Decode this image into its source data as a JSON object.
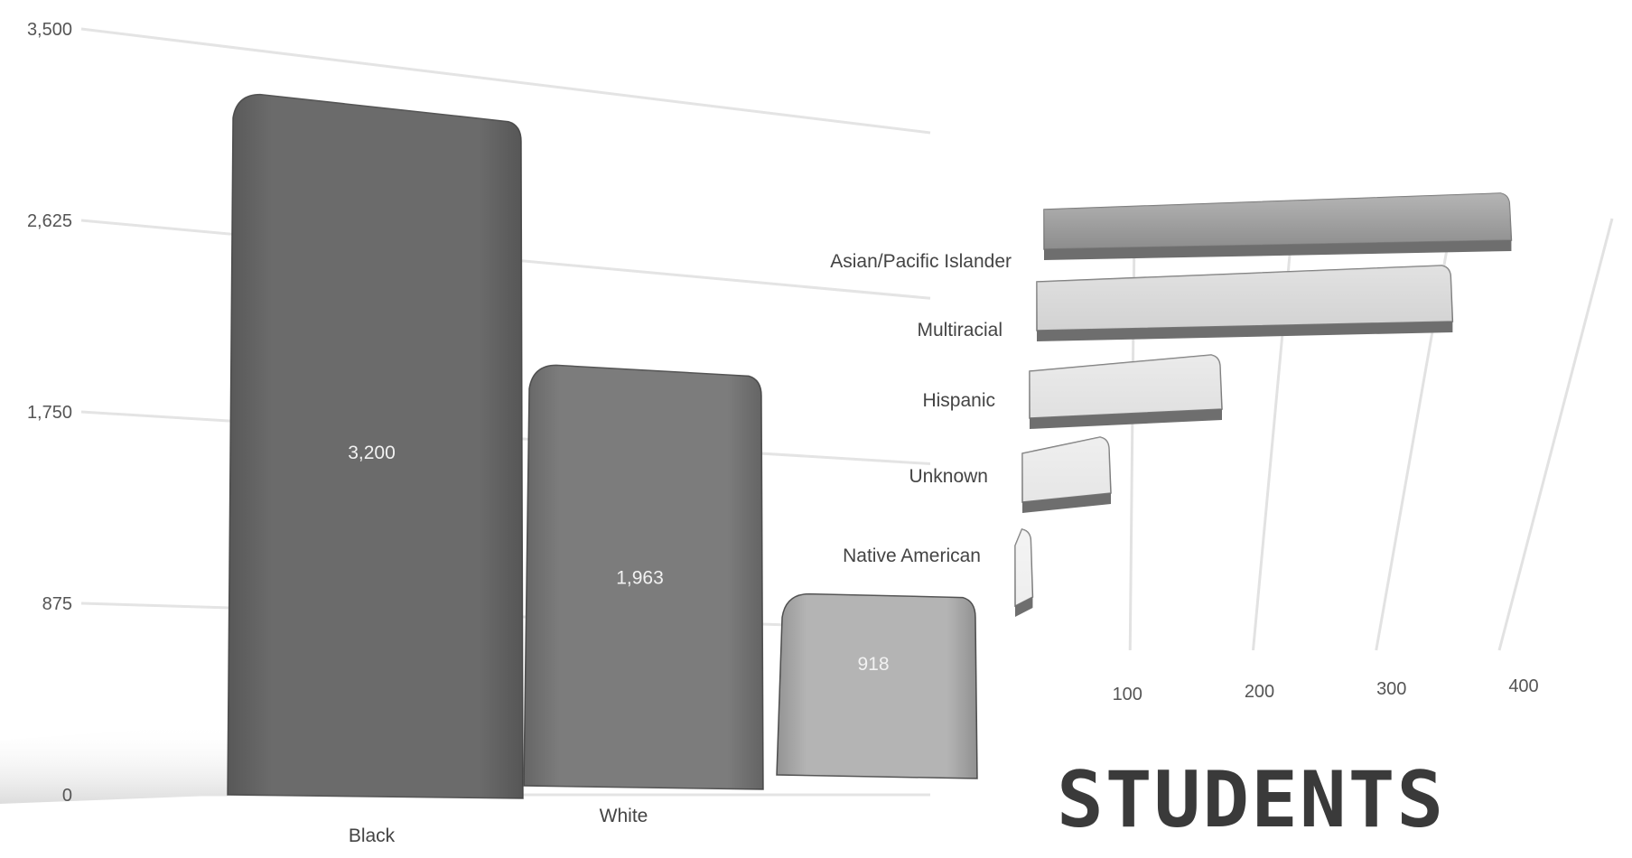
{
  "chart_data": [
    {
      "type": "bar",
      "orientation": "vertical",
      "categories": [
        "Black",
        "White",
        ""
      ],
      "values": [
        3200,
        1963,
        918
      ],
      "data_labels": [
        "3,200",
        "1,963",
        "918"
      ],
      "y_ticks": [
        "0",
        "875",
        "1,750",
        "2,625",
        "3,500"
      ],
      "ylim": [
        0,
        3500
      ],
      "grid": true,
      "colors": [
        "#6b6b6b",
        "#7c7c7c",
        "#b4b4b4"
      ]
    },
    {
      "type": "bar",
      "orientation": "horizontal",
      "categories": [
        "Asian/Pacific Islander",
        "Multiracial",
        "Hispanic",
        "Unknown",
        "Native American"
      ],
      "values": [
        335,
        310,
        160,
        80,
        15
      ],
      "x_ticks": [
        "100",
        "200",
        "300",
        "400"
      ],
      "xlim": [
        0,
        400
      ],
      "grid": true,
      "colors": [
        "#8d8d8d",
        "#d2d2d2",
        "#e0e0e0",
        "#e6e6e6",
        "#eeeeee"
      ]
    }
  ],
  "title": "STUDENTS"
}
